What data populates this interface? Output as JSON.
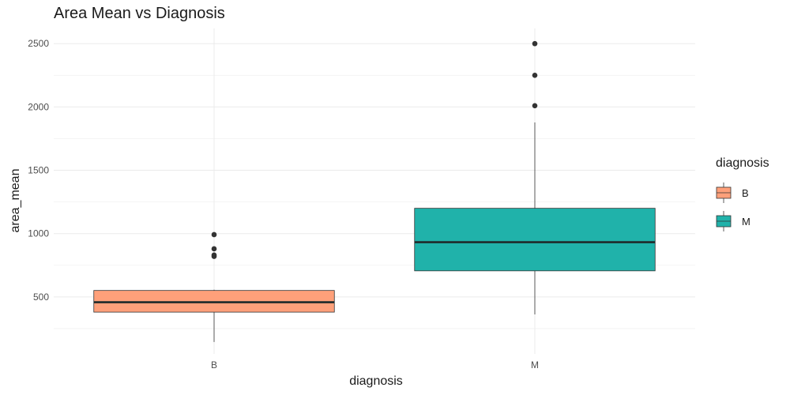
{
  "chart_data": {
    "type": "box",
    "title": "Area Mean vs Diagnosis",
    "xlabel": "diagnosis",
    "ylabel": "area_mean",
    "categories": [
      "B",
      "M"
    ],
    "ylim": [
      50,
      2620
    ],
    "yticks": [
      500,
      1000,
      1500,
      2000,
      2500
    ],
    "grid": true,
    "legend": {
      "title": "diagnosis",
      "position": "right",
      "entries": [
        {
          "label": "B",
          "color": "#FFA07A"
        },
        {
          "label": "M",
          "color": "#20B2AA"
        }
      ]
    },
    "boxes": [
      {
        "category": "B",
        "color": "#FFA07A",
        "whisker_low": 144,
        "q1": 380,
        "median": 458,
        "q3": 551,
        "whisker_high": 557,
        "outliers": [
          992,
          880,
          831,
          820
        ]
      },
      {
        "category": "M",
        "color": "#20B2AA",
        "whisker_low": 362,
        "q1": 706,
        "median": 932,
        "q3": 1200,
        "whisker_high": 1878,
        "outliers": [
          2010,
          2250,
          2500
        ]
      }
    ]
  }
}
